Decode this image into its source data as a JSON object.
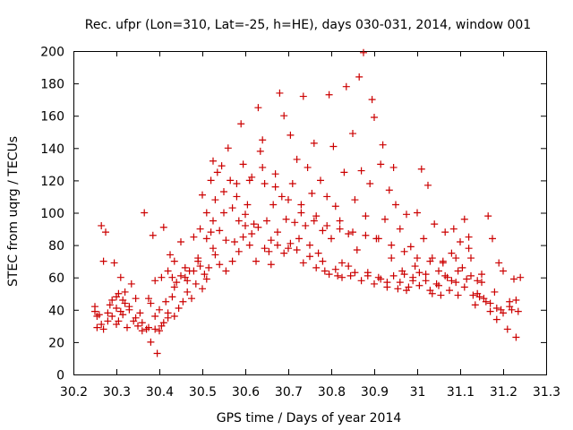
{
  "chart_data": {
    "type": "scatter",
    "title": "Rec. ufpr (Lon=310, Lat=-25, h=HE), days 030-031, 2014, window 001",
    "xlabel": "GPS time / Days of year 2014",
    "ylabel": "STEC from uqrg / TECUs",
    "xlim": [
      30.2,
      31.3
    ],
    "ylim": [
      0,
      200
    ],
    "xticks": [
      "30.2",
      "30.3",
      "30.4",
      "30.5",
      "30.6",
      "30.7",
      "30.8",
      "30.9",
      "31",
      "31.1",
      "31.2",
      "31.3"
    ],
    "yticks": [
      "0",
      "20",
      "40",
      "60",
      "80",
      "100",
      "120",
      "140",
      "160",
      "180",
      "200"
    ],
    "marker": "+",
    "color": "#cc0000",
    "grid": false,
    "series": [
      {
        "name": "STEC",
        "points": [
          [
            30.25,
            39
          ],
          [
            30.25,
            42
          ],
          [
            30.255,
            29
          ],
          [
            30.26,
            37
          ],
          [
            30.265,
            31
          ],
          [
            30.265,
            92
          ],
          [
            30.27,
            70
          ],
          [
            30.275,
            88
          ],
          [
            30.28,
            33
          ],
          [
            30.28,
            38
          ],
          [
            30.29,
            36
          ],
          [
            30.29,
            46
          ],
          [
            30.295,
            69
          ],
          [
            30.3,
            41
          ],
          [
            30.3,
            48
          ],
          [
            30.305,
            33
          ],
          [
            30.305,
            50
          ],
          [
            30.31,
            39
          ],
          [
            30.31,
            60
          ],
          [
            30.315,
            37
          ],
          [
            30.32,
            44
          ],
          [
            30.32,
            51
          ],
          [
            30.325,
            29
          ],
          [
            30.33,
            40
          ],
          [
            30.335,
            56
          ],
          [
            30.34,
            33
          ],
          [
            30.345,
            47
          ],
          [
            30.35,
            30
          ],
          [
            30.355,
            38
          ],
          [
            30.36,
            27
          ],
          [
            30.365,
            100
          ],
          [
            30.37,
            28
          ],
          [
            30.375,
            47
          ],
          [
            30.38,
            20
          ],
          [
            30.38,
            44
          ],
          [
            30.385,
            86
          ],
          [
            30.39,
            28
          ],
          [
            30.39,
            58
          ],
          [
            30.395,
            13
          ],
          [
            30.4,
            27
          ],
          [
            30.4,
            40
          ],
          [
            30.405,
            60
          ],
          [
            30.41,
            91
          ],
          [
            30.41,
            32
          ],
          [
            30.415,
            45
          ],
          [
            30.42,
            64
          ],
          [
            30.42,
            35
          ],
          [
            30.425,
            74
          ],
          [
            30.43,
            48
          ],
          [
            30.435,
            36
          ],
          [
            30.435,
            70
          ],
          [
            30.44,
            57
          ],
          [
            30.445,
            41
          ],
          [
            30.45,
            82
          ],
          [
            30.455,
            45
          ],
          [
            30.46,
            60
          ],
          [
            30.465,
            51
          ],
          [
            30.47,
            64
          ],
          [
            30.475,
            47
          ],
          [
            30.48,
            85
          ],
          [
            30.485,
            56
          ],
          [
            30.49,
            70
          ],
          [
            30.495,
            90
          ],
          [
            30.5,
            53
          ],
          [
            30.5,
            111
          ],
          [
            30.505,
            62
          ],
          [
            30.51,
            84
          ],
          [
            30.51,
            100
          ],
          [
            30.515,
            66
          ],
          [
            30.52,
            120
          ],
          [
            30.525,
            132
          ],
          [
            30.525,
            95
          ],
          [
            30.53,
            108
          ],
          [
            30.53,
            74
          ],
          [
            30.535,
            125
          ],
          [
            30.54,
            89
          ],
          [
            30.545,
            129
          ],
          [
            30.55,
            113
          ],
          [
            30.555,
            64
          ],
          [
            30.56,
            140
          ],
          [
            30.565,
            120
          ],
          [
            30.57,
            103
          ],
          [
            30.575,
            82
          ],
          [
            30.58,
            118
          ],
          [
            30.585,
            95
          ],
          [
            30.59,
            155
          ],
          [
            30.595,
            85
          ],
          [
            30.595,
            130
          ],
          [
            30.6,
            92
          ],
          [
            30.605,
            105
          ],
          [
            30.61,
            80
          ],
          [
            30.615,
            122
          ],
          [
            30.62,
            93
          ],
          [
            30.625,
            70
          ],
          [
            30.63,
            165
          ],
          [
            30.635,
            138
          ],
          [
            30.64,
            145
          ],
          [
            30.645,
            118
          ],
          [
            30.65,
            95
          ],
          [
            30.655,
            76
          ],
          [
            30.66,
            68
          ],
          [
            30.665,
            105
          ],
          [
            30.67,
            124
          ],
          [
            30.675,
            88
          ],
          [
            30.68,
            174
          ],
          [
            30.685,
            110
          ],
          [
            30.69,
            160
          ],
          [
            30.695,
            96
          ],
          [
            30.7,
            78
          ],
          [
            30.705,
            148
          ],
          [
            30.71,
            118
          ],
          [
            30.715,
            94
          ],
          [
            30.72,
            133
          ],
          [
            30.725,
            84
          ],
          [
            30.73,
            105
          ],
          [
            30.735,
            172
          ],
          [
            30.74,
            92
          ],
          [
            30.745,
            128
          ],
          [
            30.75,
            80
          ],
          [
            30.755,
            112
          ],
          [
            30.76,
            143
          ],
          [
            30.765,
            98
          ],
          [
            30.77,
            75
          ],
          [
            30.775,
            120
          ],
          [
            30.78,
            89
          ],
          [
            30.785,
            64
          ],
          [
            30.79,
            110
          ],
          [
            30.795,
            173
          ],
          [
            30.8,
            84
          ],
          [
            30.805,
            141
          ],
          [
            30.81,
            104
          ],
          [
            30.815,
            61
          ],
          [
            30.82,
            95
          ],
          [
            30.825,
            69
          ],
          [
            30.83,
            125
          ],
          [
            30.835,
            178
          ],
          [
            30.84,
            87
          ],
          [
            30.845,
            61
          ],
          [
            30.85,
            149
          ],
          [
            30.855,
            108
          ],
          [
            30.86,
            77
          ],
          [
            30.865,
            184
          ],
          [
            30.87,
            126
          ],
          [
            30.875,
            199
          ],
          [
            30.88,
            98
          ],
          [
            30.885,
            63
          ],
          [
            30.89,
            118
          ],
          [
            30.895,
            170
          ],
          [
            30.9,
            159
          ],
          [
            30.905,
            84
          ],
          [
            30.91,
            60
          ],
          [
            30.915,
            130
          ],
          [
            30.92,
            142
          ],
          [
            30.925,
            96
          ],
          [
            30.93,
            57
          ],
          [
            30.935,
            114
          ],
          [
            30.94,
            72
          ],
          [
            30.945,
            128
          ],
          [
            30.95,
            105
          ],
          [
            30.955,
            53
          ],
          [
            30.96,
            90
          ],
          [
            30.965,
            64
          ],
          [
            30.97,
            62
          ],
          [
            30.975,
            99
          ],
          [
            30.98,
            54
          ],
          [
            30.985,
            79
          ],
          [
            30.99,
            58
          ],
          [
            30.995,
            67
          ],
          [
            31.0,
            100
          ],
          [
            31.005,
            55
          ],
          [
            31.01,
            127
          ],
          [
            31.015,
            84
          ],
          [
            31.02,
            62
          ],
          [
            31.025,
            117
          ],
          [
            31.03,
            52
          ],
          [
            31.035,
            72
          ],
          [
            31.04,
            93
          ],
          [
            31.045,
            56
          ],
          [
            31.05,
            64
          ],
          [
            31.055,
            49
          ],
          [
            31.06,
            70
          ],
          [
            31.065,
            88
          ],
          [
            31.07,
            60
          ],
          [
            31.075,
            52
          ],
          [
            31.08,
            75
          ],
          [
            31.085,
            90
          ],
          [
            31.09,
            57
          ],
          [
            31.095,
            49
          ],
          [
            31.1,
            82
          ],
          [
            31.105,
            66
          ],
          [
            31.11,
            96
          ],
          [
            31.115,
            59
          ],
          [
            31.12,
            85
          ],
          [
            31.125,
            72
          ],
          [
            31.13,
            49
          ],
          [
            31.135,
            43
          ],
          [
            31.14,
            58
          ],
          [
            31.145,
            48
          ],
          [
            31.15,
            57
          ],
          [
            31.16,
            45
          ],
          [
            31.165,
            98
          ],
          [
            31.17,
            39
          ],
          [
            31.175,
            84
          ],
          [
            31.18,
            51
          ],
          [
            31.185,
            34
          ],
          [
            31.19,
            69
          ],
          [
            31.195,
            40
          ],
          [
            31.2,
            64
          ],
          [
            31.21,
            28
          ],
          [
            31.215,
            45
          ],
          [
            31.22,
            40
          ],
          [
            31.225,
            59
          ],
          [
            31.23,
            23
          ],
          [
            31.235,
            39
          ],
          [
            31.24,
            60
          ],
          [
            30.255,
            36
          ],
          [
            30.27,
            28
          ],
          [
            30.285,
            43
          ],
          [
            30.3,
            31
          ],
          [
            30.315,
            46
          ],
          [
            30.33,
            42
          ],
          [
            30.345,
            35
          ],
          [
            30.36,
            32
          ],
          [
            30.375,
            29
          ],
          [
            30.39,
            36
          ],
          [
            30.405,
            30
          ],
          [
            30.42,
            38
          ],
          [
            30.435,
            54
          ],
          [
            30.45,
            61
          ],
          [
            30.465,
            58
          ],
          [
            30.48,
            64
          ],
          [
            30.495,
            67
          ],
          [
            30.51,
            59
          ],
          [
            30.525,
            78
          ],
          [
            30.54,
            68
          ],
          [
            30.555,
            83
          ],
          [
            30.57,
            70
          ],
          [
            30.585,
            76
          ],
          [
            30.6,
            99
          ],
          [
            30.615,
            87
          ],
          [
            30.63,
            91
          ],
          [
            30.645,
            78
          ],
          [
            30.66,
            83
          ],
          [
            30.675,
            80
          ],
          [
            30.69,
            75
          ],
          [
            30.705,
            81
          ],
          [
            30.72,
            77
          ],
          [
            30.735,
            69
          ],
          [
            30.75,
            73
          ],
          [
            30.765,
            66
          ],
          [
            30.78,
            70
          ],
          [
            30.795,
            62
          ],
          [
            30.81,
            65
          ],
          [
            30.825,
            60
          ],
          [
            30.84,
            67
          ],
          [
            30.855,
            63
          ],
          [
            30.87,
            58
          ],
          [
            30.885,
            61
          ],
          [
            30.9,
            56
          ],
          [
            30.915,
            59
          ],
          [
            30.93,
            54
          ],
          [
            30.945,
            61
          ],
          [
            30.96,
            57
          ],
          [
            30.975,
            52
          ],
          [
            30.99,
            60
          ],
          [
            31.005,
            63
          ],
          [
            31.02,
            58
          ],
          [
            31.035,
            50
          ],
          [
            31.05,
            55
          ],
          [
            31.065,
            61
          ],
          [
            31.08,
            58
          ],
          [
            31.095,
            64
          ],
          [
            31.11,
            54
          ],
          [
            31.125,
            61
          ],
          [
            31.14,
            50
          ],
          [
            31.155,
            47
          ],
          [
            31.17,
            44
          ],
          [
            31.185,
            41
          ],
          [
            31.2,
            38
          ],
          [
            31.215,
            42
          ],
          [
            31.23,
            46
          ],
          [
            30.43,
            60
          ],
          [
            30.46,
            66
          ],
          [
            30.49,
            72
          ],
          [
            30.52,
            88
          ],
          [
            30.55,
            100
          ],
          [
            30.58,
            110
          ],
          [
            30.61,
            120
          ],
          [
            30.64,
            128
          ],
          [
            30.67,
            116
          ],
          [
            30.7,
            108
          ],
          [
            30.73,
            100
          ],
          [
            30.76,
            95
          ],
          [
            30.79,
            92
          ],
          [
            30.82,
            90
          ],
          [
            30.85,
            88
          ],
          [
            30.88,
            86
          ],
          [
            30.91,
            84
          ],
          [
            30.94,
            80
          ],
          [
            30.97,
            76
          ],
          [
            31.0,
            72
          ],
          [
            31.03,
            70
          ],
          [
            31.06,
            69
          ],
          [
            31.09,
            72
          ],
          [
            31.12,
            78
          ],
          [
            31.15,
            62
          ]
        ]
      }
    ]
  }
}
